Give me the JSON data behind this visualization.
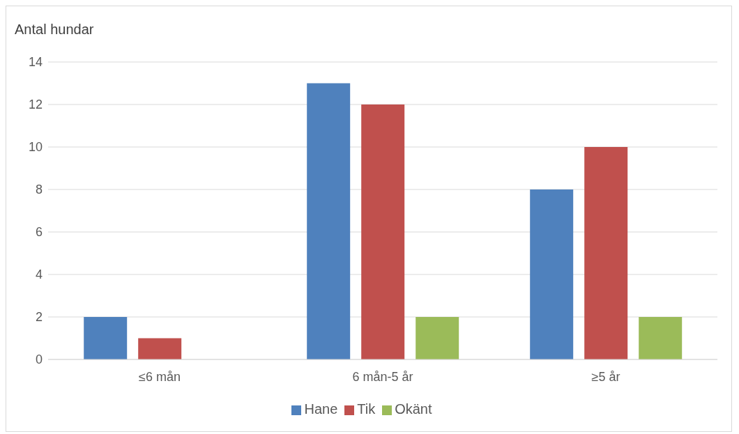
{
  "chart_data": {
    "type": "bar",
    "ylabel": "Antal hundar",
    "categories": [
      "≤6 mån",
      "6 mån-5 år",
      "≥5 år"
    ],
    "series": [
      {
        "name": "Hane",
        "color": "#4f81bd",
        "values": [
          2,
          13,
          8
        ]
      },
      {
        "name": "Tik",
        "color": "#c0504d",
        "values": [
          1,
          12,
          10
        ]
      },
      {
        "name": "Okänt",
        "color": "#9bbb59",
        "values": [
          0,
          2,
          2
        ]
      }
    ],
    "ylim": [
      0,
      14
    ],
    "yticks": [
      0,
      2,
      4,
      6,
      8,
      10,
      12,
      14
    ],
    "grid": "y",
    "legend": "bottom"
  }
}
